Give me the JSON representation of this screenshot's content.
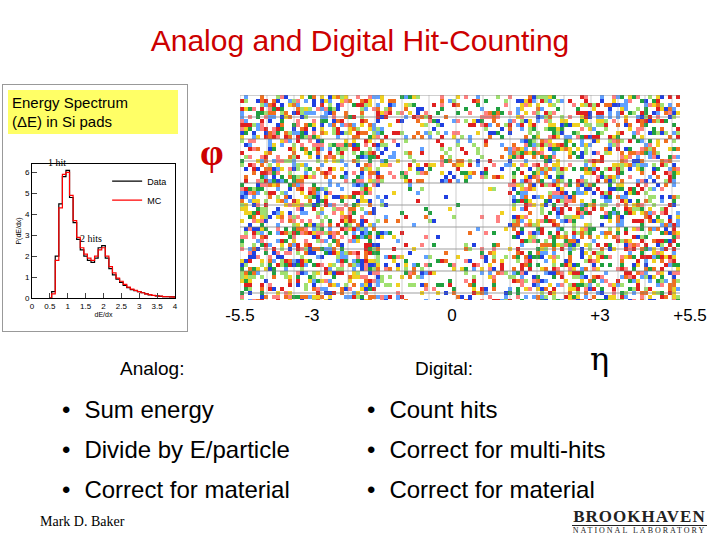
{
  "title": "Analog and Digital Hit-Counting",
  "spectrum_label": [
    "Energy Spectrum",
    "(ΔE) in Si pads"
  ],
  "chart_data": {
    "type": "line",
    "line_style": "steps",
    "legend": "upper right",
    "x_label": "dE/dx",
    "y_label": "P(dE/dx)",
    "x": [
      0.5,
      0.6,
      0.7,
      0.8,
      0.9,
      1.0,
      1.1,
      1.2,
      1.3,
      1.4,
      1.5,
      1.6,
      1.7,
      1.8,
      1.9,
      2.0,
      2.1,
      2.2,
      2.3,
      2.4,
      2.5,
      2.6,
      2.7,
      2.8,
      2.9,
      3.0,
      3.1,
      3.2,
      3.3,
      3.4,
      3.5,
      3.6,
      3.7,
      3.8,
      3.9,
      4.0
    ],
    "series": [
      {
        "name": "Data",
        "color": "#000000",
        "values": [
          0,
          0.3,
          2.0,
          4.5,
          5.8,
          6.1,
          4.8,
          3.6,
          2.8,
          2.3,
          2.0,
          1.8,
          1.7,
          1.9,
          2.4,
          2.5,
          1.9,
          1.4,
          1.1,
          0.9,
          0.75,
          0.6,
          0.5,
          0.4,
          0.35,
          0.3,
          0.25,
          0.2,
          0.15,
          0.12,
          0.1,
          0.08,
          0.07,
          0.06,
          0.05,
          0.05
        ]
      },
      {
        "name": "MC",
        "color": "#ff0000",
        "values": [
          0,
          0.2,
          1.8,
          4.3,
          5.9,
          6.0,
          4.9,
          3.7,
          2.9,
          2.4,
          2.1,
          1.9,
          1.8,
          2.0,
          2.3,
          2.4,
          2.0,
          1.5,
          1.2,
          0.95,
          0.8,
          0.65,
          0.52,
          0.42,
          0.36,
          0.3,
          0.25,
          0.2,
          0.16,
          0.13,
          0.1,
          0.09,
          0.07,
          0.06,
          0.05,
          0.04
        ]
      }
    ],
    "xlim": [
      0,
      4
    ],
    "xticks": [
      0,
      0.5,
      1,
      1.5,
      2,
      2.5,
      3,
      3.5,
      4
    ],
    "ylim": [
      0,
      6.4
    ],
    "yticks": [
      0,
      1,
      2,
      3,
      4,
      5,
      6
    ],
    "annotations": [
      {
        "text": "1 hit",
        "x": 1,
        "y": 6.1
      },
      {
        "text": "2 hits",
        "x": 2,
        "y": 2.5
      }
    ]
  },
  "hit_display": {
    "y_label": "φ",
    "x_label": "η",
    "x_ticks": [
      {
        "label": "-5.5",
        "left": 0
      },
      {
        "label": "-3",
        "left": 1
      },
      {
        "label": "0",
        "left": 2
      },
      {
        "label": "+3",
        "left": 3
      },
      {
        "label": "+5.5",
        "left": 4
      }
    ]
  },
  "analog": {
    "heading": "Analog:",
    "bullets": [
      "Sum energy",
      "Divide by E/particle",
      "Correct for material"
    ]
  },
  "digital": {
    "heading": "Digital:",
    "bullets": [
      "Count hits",
      "Correct for multi-hits",
      "Correct for material"
    ]
  },
  "author": "Mark D. Baker",
  "logo": {
    "name": "BROOKHAVEN",
    "sub": "NATIONAL LABORATORY"
  }
}
